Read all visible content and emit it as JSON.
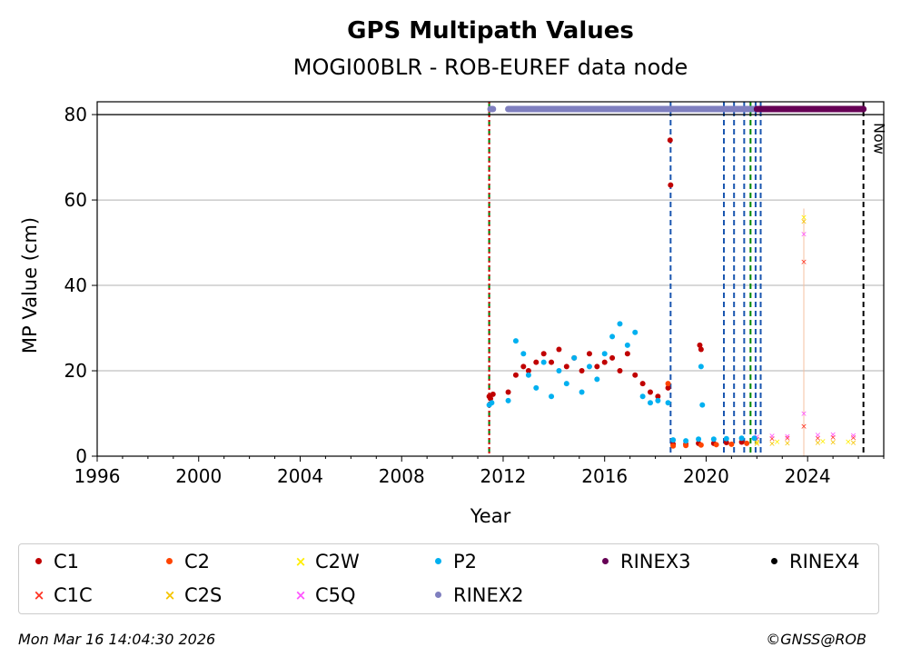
{
  "chart_data": {
    "type": "scatter",
    "title": "GPS Multipath Values",
    "subtitle": "MOGI00BLR - ROB-EUREF data node",
    "xlabel": "Year",
    "ylabel": "MP Value (cm)",
    "xlim": [
      1996,
      2027
    ],
    "ylim": [
      0,
      83
    ],
    "x_ticks": [
      "1996",
      "2000",
      "2004",
      "2008",
      "2012",
      "2016",
      "2020",
      "2024"
    ],
    "y_ticks": [
      "0",
      "20",
      "40",
      "60",
      "80"
    ],
    "grid": "horizontal",
    "legend_placement": "bottom",
    "series": [
      {
        "name": "C1",
        "color": "#c00000",
        "marker": "dot",
        "points": [
          [
            2011.45,
            14
          ],
          [
            2011.5,
            13.5
          ],
          [
            2011.6,
            14.5
          ],
          [
            2012.2,
            15
          ],
          [
            2012.5,
            19
          ],
          [
            2012.8,
            21
          ],
          [
            2013.0,
            20
          ],
          [
            2013.3,
            22
          ],
          [
            2013.6,
            24
          ],
          [
            2013.9,
            22
          ],
          [
            2014.2,
            25
          ],
          [
            2014.5,
            21
          ],
          [
            2014.8,
            23
          ],
          [
            2015.1,
            20
          ],
          [
            2015.4,
            24
          ],
          [
            2015.7,
            21
          ],
          [
            2016.0,
            22
          ],
          [
            2016.3,
            23
          ],
          [
            2016.6,
            20
          ],
          [
            2016.9,
            24
          ],
          [
            2017.2,
            19
          ],
          [
            2017.5,
            17
          ],
          [
            2017.8,
            15
          ],
          [
            2018.1,
            14
          ],
          [
            2018.5,
            16
          ],
          [
            2018.58,
            74
          ],
          [
            2018.6,
            63.5
          ],
          [
            2018.7,
            2.8
          ],
          [
            2019.2,
            2.8
          ],
          [
            2019.7,
            3
          ],
          [
            2019.75,
            26
          ],
          [
            2019.8,
            25
          ],
          [
            2020.3,
            3
          ],
          [
            2020.8,
            3.2
          ],
          [
            2021.4,
            3.3
          ]
        ]
      },
      {
        "name": "C1C",
        "color": "#ff3322",
        "marker": "x",
        "points": [
          [
            2022.0,
            4
          ],
          [
            2022.6,
            4.2
          ],
          [
            2023.2,
            4.3
          ],
          [
            2023.85,
            45.5
          ],
          [
            2023.85,
            7
          ],
          [
            2024.4,
            4.3
          ],
          [
            2025.0,
            4.5
          ],
          [
            2025.8,
            4.4
          ]
        ]
      },
      {
        "name": "C2",
        "color": "#ff4400",
        "marker": "dot",
        "points": [
          [
            2018.5,
            17
          ],
          [
            2018.7,
            2.4
          ],
          [
            2019.2,
            2.5
          ],
          [
            2019.8,
            2.6
          ],
          [
            2020.4,
            2.7
          ],
          [
            2021.0,
            2.8
          ],
          [
            2021.6,
            3
          ]
        ]
      },
      {
        "name": "C2S",
        "color": "#f5c400",
        "marker": "x",
        "points": [
          [
            2022.0,
            3
          ],
          [
            2022.6,
            3
          ],
          [
            2023.2,
            3.1
          ],
          [
            2023.85,
            55
          ],
          [
            2024.4,
            3.2
          ],
          [
            2025.0,
            3.3
          ],
          [
            2025.8,
            3.2
          ]
        ]
      },
      {
        "name": "C2W",
        "color": "#ffee00",
        "marker": "x",
        "points": [
          [
            2022.0,
            3.3
          ],
          [
            2022.8,
            3.4
          ],
          [
            2023.85,
            56
          ],
          [
            2024.6,
            3.5
          ],
          [
            2025.6,
            3.4
          ]
        ]
      },
      {
        "name": "C5Q",
        "color": "#ff55ff",
        "marker": "x",
        "points": [
          [
            2022.0,
            4.6
          ],
          [
            2022.6,
            4.8
          ],
          [
            2023.2,
            4.7
          ],
          [
            2023.85,
            52
          ],
          [
            2023.85,
            10
          ],
          [
            2024.4,
            5
          ],
          [
            2025.0,
            5.1
          ],
          [
            2025.8,
            4.9
          ]
        ]
      },
      {
        "name": "P2",
        "color": "#00b0f0",
        "marker": "dot",
        "points": [
          [
            2011.45,
            12
          ],
          [
            2011.55,
            12.5
          ],
          [
            2012.2,
            13
          ],
          [
            2012.5,
            27
          ],
          [
            2012.8,
            24
          ],
          [
            2013.0,
            19
          ],
          [
            2013.3,
            16
          ],
          [
            2013.6,
            22
          ],
          [
            2013.9,
            14
          ],
          [
            2014.2,
            20
          ],
          [
            2014.5,
            17
          ],
          [
            2014.8,
            23
          ],
          [
            2015.1,
            15
          ],
          [
            2015.4,
            21
          ],
          [
            2015.7,
            18
          ],
          [
            2016.0,
            24
          ],
          [
            2016.3,
            28
          ],
          [
            2016.6,
            31
          ],
          [
            2016.9,
            26
          ],
          [
            2017.2,
            29
          ],
          [
            2017.5,
            14
          ],
          [
            2017.8,
            12.5
          ],
          [
            2018.1,
            13
          ],
          [
            2018.5,
            12.5
          ],
          [
            2018.7,
            3.8
          ],
          [
            2019.2,
            3.6
          ],
          [
            2019.7,
            4
          ],
          [
            2019.8,
            21
          ],
          [
            2019.85,
            12
          ],
          [
            2020.3,
            4
          ],
          [
            2020.8,
            4.1
          ],
          [
            2021.4,
            4.2
          ],
          [
            2021.9,
            4.2
          ]
        ]
      },
      {
        "name": "RINEX2",
        "color": "#7f7fbf",
        "marker": "dot",
        "segments": [
          [
            2011.5,
            2011.6
          ],
          [
            2012.2,
            2022.0
          ]
        ],
        "y": 81.3
      },
      {
        "name": "RINEX3",
        "color": "#660055",
        "marker": "dot",
        "segments": [
          [
            2022.0,
            2026.2
          ]
        ],
        "y": 81.3
      },
      {
        "name": "RINEX4",
        "color": "#000000",
        "marker": "dot",
        "segments": [],
        "y": 81.3
      }
    ],
    "event_lines": [
      {
        "x": 2011.45,
        "color": "#1a56b0",
        "style": "dashed"
      },
      {
        "x": 2011.45,
        "color": "#008800",
        "style": "dashed"
      },
      {
        "x": 2011.45,
        "color": "#dd0000",
        "style": "dotted"
      },
      {
        "x": 2018.6,
        "color": "#1a56b0",
        "style": "dashed"
      },
      {
        "x": 2020.7,
        "color": "#1a56b0",
        "style": "dashed"
      },
      {
        "x": 2021.1,
        "color": "#1a56b0",
        "style": "dashed"
      },
      {
        "x": 2021.5,
        "color": "#1a56b0",
        "style": "dashed"
      },
      {
        "x": 2021.75,
        "color": "#008800",
        "style": "dashed"
      },
      {
        "x": 2021.95,
        "color": "#1a56b0",
        "style": "dashed"
      },
      {
        "x": 2022.15,
        "color": "#1a56b0",
        "style": "dashed"
      },
      {
        "x": 2026.2,
        "color": "#000000",
        "style": "dashed"
      }
    ],
    "annotations": [
      {
        "text": "Now",
        "x": 2026.2,
        "rotated": true
      }
    ]
  },
  "legend": [
    {
      "name": "C1",
      "color": "#c00000",
      "marker": "dot"
    },
    {
      "name": "C2",
      "color": "#ff4400",
      "marker": "dot"
    },
    {
      "name": "C2W",
      "color": "#ffee00",
      "marker": "x"
    },
    {
      "name": "P2",
      "color": "#00b0f0",
      "marker": "dot"
    },
    {
      "name": "RINEX3",
      "color": "#660055",
      "marker": "dot"
    },
    {
      "name": "RINEX4",
      "color": "#000000",
      "marker": "dot"
    },
    {
      "name": "C1C",
      "color": "#ff3322",
      "marker": "x"
    },
    {
      "name": "C2S",
      "color": "#f5c400",
      "marker": "x"
    },
    {
      "name": "C5Q",
      "color": "#ff55ff",
      "marker": "x"
    },
    {
      "name": "RINEX2",
      "color": "#7f7fbf",
      "marker": "dot"
    }
  ],
  "footer": {
    "timestamp": "Mon Mar 16 14:04:30 2026",
    "copyright": "©GNSS@ROB"
  }
}
